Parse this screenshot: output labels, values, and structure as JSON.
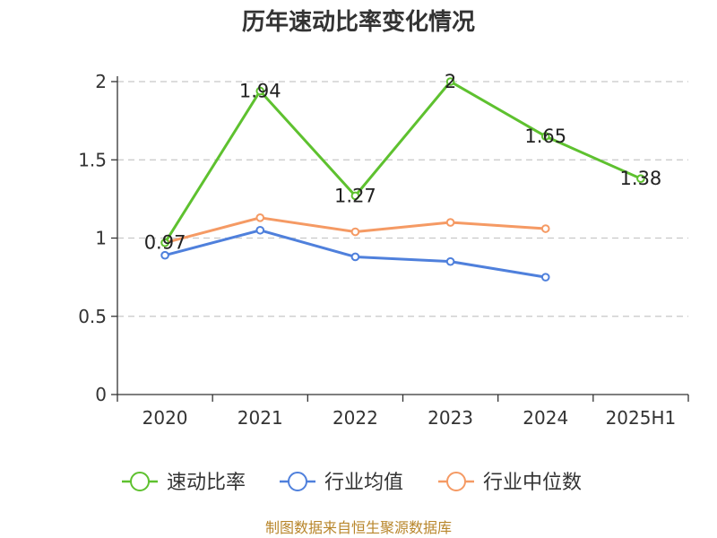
{
  "chart_data": {
    "type": "line",
    "title": "历年速动比率变化情况",
    "categories": [
      "2020",
      "2021",
      "2022",
      "2023",
      "2024",
      "2025H1"
    ],
    "ylim": [
      0,
      2
    ],
    "yticks": [
      "0",
      "0.5",
      "1",
      "1.5",
      "2"
    ],
    "grid": true,
    "legend_position": "bottom",
    "series": [
      {
        "name": "速动比率",
        "color": "#5ec12f",
        "values": [
          0.97,
          1.94,
          1.27,
          2,
          1.65,
          1.38
        ],
        "labels": [
          "0.97",
          "1.94",
          "1.27",
          "2",
          "1.65",
          "1.38"
        ]
      },
      {
        "name": "行业均值",
        "color": "#4f80dc",
        "values": [
          0.89,
          1.05,
          0.88,
          0.85,
          0.75,
          null
        ]
      },
      {
        "name": "行业中位数",
        "color": "#f59a64",
        "values": [
          0.97,
          1.13,
          1.04,
          1.1,
          1.06,
          null
        ]
      }
    ]
  },
  "footer": {
    "source": "制图数据来自恒生聚源数据库"
  }
}
